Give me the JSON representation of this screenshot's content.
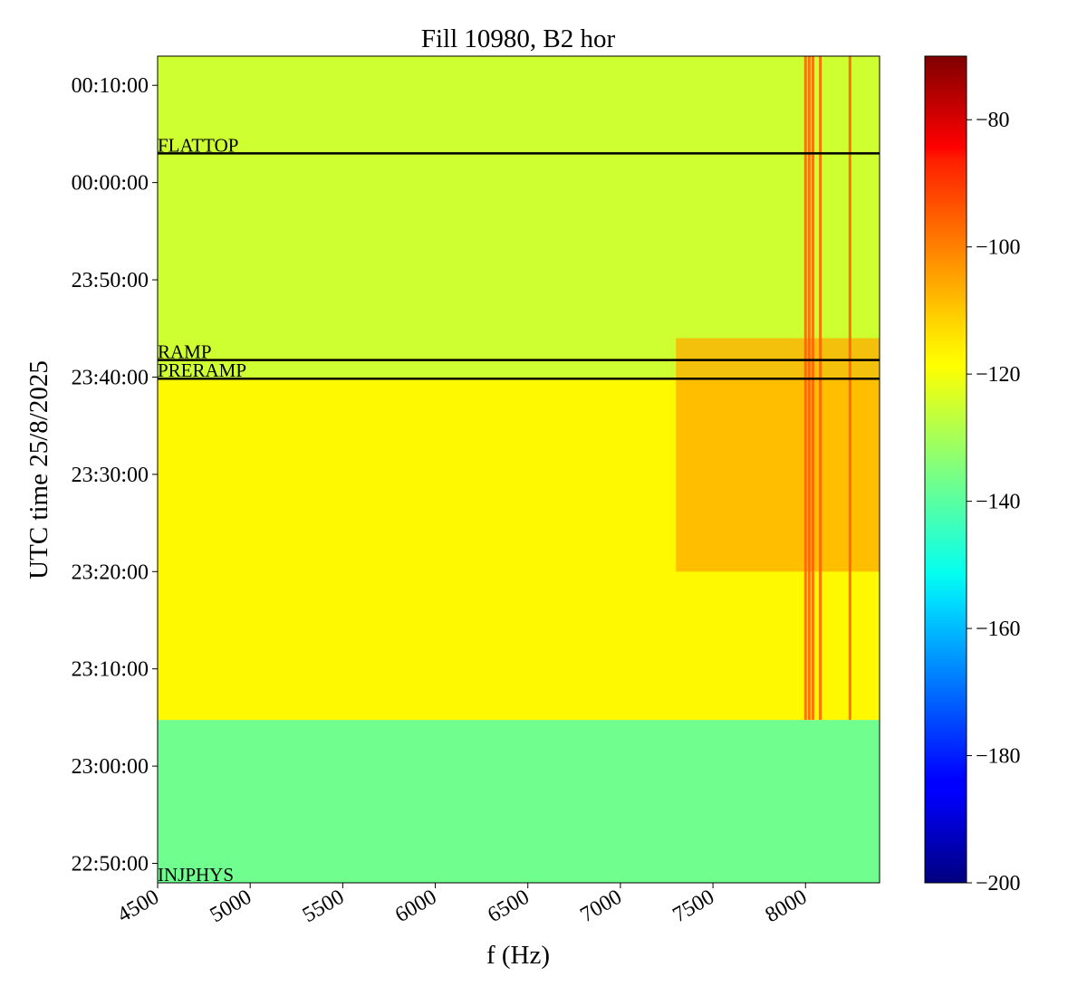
{
  "chart_data": {
    "type": "heatmap",
    "title": "Fill 10980, B2 hor",
    "xlabel": "f (Hz)",
    "ylabel": "UTC time 25/8/2025",
    "x_unit": "Hz",
    "xlim": [
      4500,
      8400
    ],
    "ylim": [
      "22:48:00",
      "00:13:00"
    ],
    "x_ticks": [
      4500,
      5000,
      5500,
      6000,
      6500,
      7000,
      7500,
      8000
    ],
    "y_ticks": [
      "22:50:00",
      "23:00:00",
      "23:10:00",
      "23:20:00",
      "23:30:00",
      "23:40:00",
      "23:50:00",
      "00:00:00",
      "00:10:00"
    ],
    "colorbar": {
      "colormap": "jet",
      "range": [
        -200,
        -70
      ],
      "ticks": [
        -200,
        -180,
        -160,
        -140,
        -120,
        -100,
        -80
      ],
      "tick_labels": [
        "−200",
        "−180",
        "−160",
        "−140",
        "−120",
        "−100",
        "−80"
      ]
    },
    "regions": [
      {
        "time_start": "22:48:00",
        "time_end": "23:04:45",
        "level": -137
      },
      {
        "time_start": "23:04:45",
        "time_end": "23:39:50",
        "level": -118
      },
      {
        "time_start": "23:39:50",
        "time_end": "00:13:00",
        "level": -125
      }
    ],
    "hot_band": {
      "f_start": 7300,
      "f_end": 8400,
      "time_start": "23:20:00",
      "time_end": "23:44:00",
      "level": -108
    },
    "strong_lines_hz": [
      8000,
      8020,
      8040,
      8080,
      8240
    ],
    "phase_markers": [
      {
        "label": "INJPHYS",
        "time": "22:48:00",
        "drawn_line": false
      },
      {
        "label": "PRERAMP",
        "time": "23:39:50",
        "drawn_line": true
      },
      {
        "label": "RAMP",
        "time": "23:41:45",
        "drawn_line": true
      },
      {
        "label": "FLATTOP",
        "time": "00:03:00",
        "drawn_line": true
      }
    ]
  }
}
